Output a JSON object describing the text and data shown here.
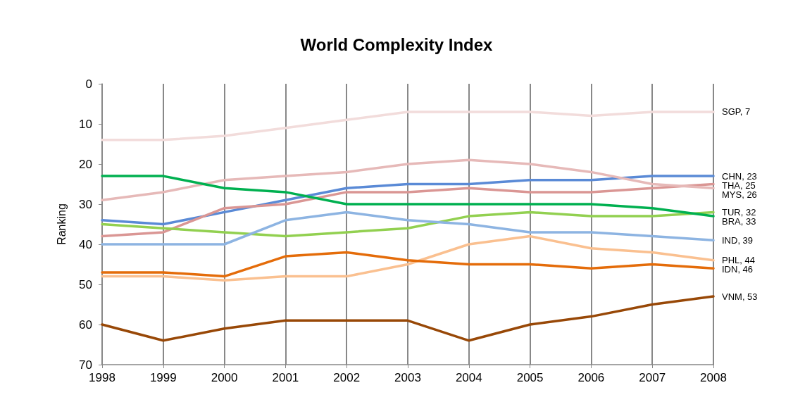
{
  "chart_data": {
    "type": "line",
    "title": "World Complexity Index",
    "ylabel": "Ranking",
    "categories": [
      "1998",
      "1999",
      "2000",
      "2001",
      "2002",
      "2003",
      "2004",
      "2005",
      "2006",
      "2007",
      "2008"
    ],
    "ylim": [
      70,
      0
    ],
    "yticks": [
      0,
      10,
      20,
      30,
      40,
      50,
      60,
      70
    ],
    "grid": "x",
    "marker": "none",
    "line_style": "solid",
    "series": [
      {
        "color": "#f2dcdb",
        "values": [
          14,
          14,
          13,
          11,
          9,
          7,
          7,
          7,
          8,
          7,
          7
        ],
        "value_labels": [
          null,
          null,
          null,
          null,
          null,
          null,
          null,
          null,
          null,
          null,
          "SGP, 7"
        ]
      },
      {
        "color": "#5a8ad6",
        "values": [
          34,
          35,
          32,
          29,
          26,
          25,
          25,
          24,
          24,
          23,
          23
        ],
        "value_labels": [
          null,
          null,
          null,
          null,
          null,
          null,
          null,
          null,
          null,
          null,
          "CHN, 23"
        ]
      },
      {
        "color": "#da9694",
        "values": [
          38,
          37,
          31,
          30,
          27,
          27,
          26,
          27,
          27,
          26,
          25
        ],
        "value_labels": [
          null,
          null,
          null,
          null,
          null,
          null,
          null,
          null,
          null,
          null,
          "THA, 25"
        ]
      },
      {
        "color": "#e6b9b8",
        "values": [
          29,
          27,
          24,
          23,
          22,
          20,
          19,
          20,
          22,
          25,
          26
        ],
        "value_labels": [
          null,
          null,
          null,
          null,
          null,
          null,
          null,
          null,
          null,
          null,
          "MYS, 26"
        ]
      },
      {
        "color": "#92d050",
        "values": [
          35,
          36,
          37,
          38,
          37,
          36,
          33,
          32,
          33,
          33,
          32
        ],
        "value_labels": [
          null,
          null,
          null,
          null,
          null,
          null,
          null,
          null,
          null,
          null,
          "TUR, 32"
        ]
      },
      {
        "color": "#00b050",
        "values": [
          23,
          23,
          26,
          27,
          30,
          30,
          30,
          30,
          30,
          31,
          33
        ],
        "value_labels": [
          null,
          null,
          null,
          null,
          null,
          null,
          null,
          null,
          null,
          null,
          "BRA, 33"
        ]
      },
      {
        "color": "#8db4e2",
        "values": [
          40,
          40,
          40,
          34,
          32,
          34,
          35,
          37,
          37,
          38,
          39
        ],
        "value_labels": [
          null,
          null,
          null,
          null,
          null,
          null,
          null,
          null,
          null,
          null,
          "IND, 39"
        ]
      },
      {
        "color": "#fac090",
        "values": [
          48,
          48,
          49,
          48,
          48,
          45,
          40,
          38,
          41,
          42,
          44
        ],
        "value_labels": [
          null,
          null,
          null,
          null,
          null,
          null,
          null,
          null,
          null,
          null,
          "PHL, 44"
        ]
      },
      {
        "color": "#e46c0a",
        "values": [
          47,
          47,
          48,
          43,
          42,
          44,
          45,
          45,
          46,
          45,
          46
        ],
        "value_labels": [
          null,
          null,
          null,
          null,
          null,
          null,
          null,
          null,
          null,
          null,
          "IDN, 46"
        ]
      },
      {
        "color": "#984807",
        "values": [
          60,
          64,
          61,
          59,
          59,
          59,
          64,
          60,
          58,
          55,
          53
        ],
        "value_labels": [
          null,
          null,
          null,
          null,
          null,
          null,
          null,
          null,
          null,
          null,
          "VNM, 53"
        ]
      }
    ]
  }
}
